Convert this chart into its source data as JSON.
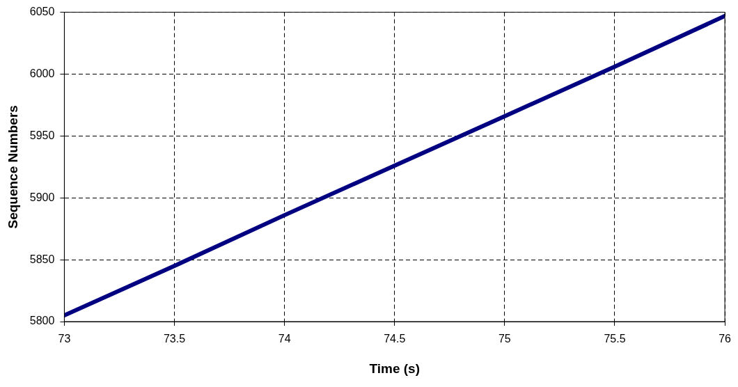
{
  "chart_data": {
    "type": "line",
    "xlabel": "Time (s)",
    "ylabel": "Sequence Numbers",
    "x": [
      73,
      73.5,
      74,
      74.5,
      75,
      75.5,
      76
    ],
    "series": [
      {
        "color": "#000080",
        "values": [
          5805,
          5845,
          5886,
          5926,
          5966,
          6006,
          6047
        ]
      }
    ],
    "xlim": [
      73,
      76
    ],
    "xticks": [
      73,
      73.5,
      74,
      74.5,
      75,
      75.5,
      76
    ],
    "ylim": [
      5800,
      6050
    ],
    "yticks": [
      5800,
      5850,
      5900,
      5950,
      6000,
      6050
    ],
    "grid": true,
    "legend": false,
    "marker": "none",
    "line_style": "solid"
  }
}
